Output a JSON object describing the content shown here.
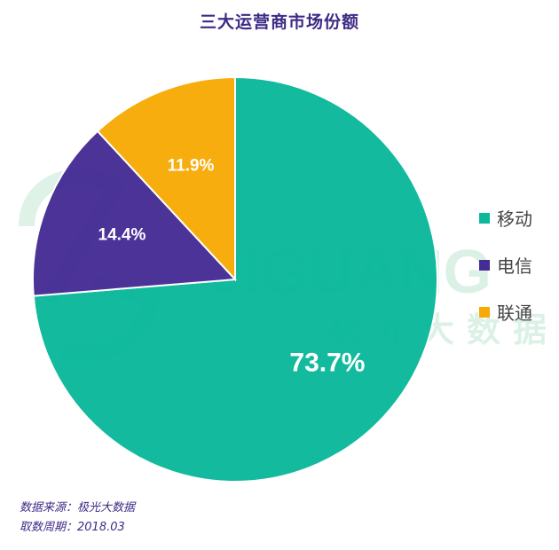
{
  "title": "三大运营商市场份额",
  "chart_data": {
    "type": "pie",
    "title": "三大运营商市场份额",
    "slices": [
      {
        "name": "移动",
        "value": 73.7,
        "label": "73.7%",
        "color": "#0bb89a"
      },
      {
        "name": "电信",
        "value": 14.4,
        "label": "14.4%",
        "color": "#452c94"
      },
      {
        "name": "联通",
        "value": 11.9,
        "label": "11.9%",
        "color": "#f7aa05"
      }
    ],
    "legend_position": "right",
    "start": "12 o'clock, clockwise"
  },
  "watermark": {
    "brand": "JIGUANG",
    "cn": "极光大数据"
  },
  "footer": {
    "source_label": "数据来源：",
    "source_value": "极光大数据",
    "period_label": "取数周期：",
    "period_value": "2018.03"
  }
}
